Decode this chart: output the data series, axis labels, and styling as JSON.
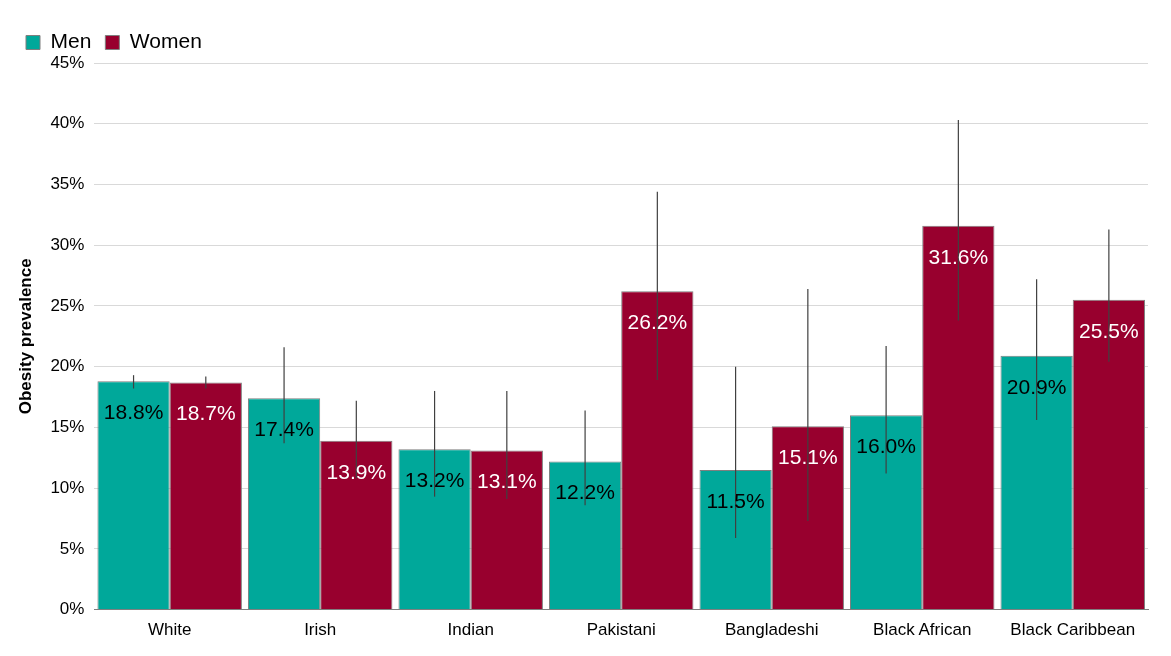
{
  "chart_data": {
    "type": "bar",
    "ylabel": "Obesity prevalence",
    "categories": [
      "White",
      "Irish",
      "Indian",
      "Pakistani",
      "Bangladeshi",
      "Black African",
      "Black Caribbean"
    ],
    "series": [
      {
        "name": "Men",
        "color": "#00a89a",
        "values": [
          18.8,
          17.4,
          13.2,
          12.2,
          11.5,
          16.0,
          20.9
        ],
        "value_labels": [
          "18.8%",
          "17.4%",
          "13.2%",
          "12.2%",
          "11.5%",
          "16.0%",
          "20.9%"
        ],
        "errors": [
          [
            18.2,
            19.3
          ],
          [
            13.7,
            21.6
          ],
          [
            9.3,
            18.0
          ],
          [
            8.6,
            16.4
          ],
          [
            5.9,
            20.0
          ],
          [
            11.2,
            21.7
          ],
          [
            15.6,
            27.2
          ]
        ]
      },
      {
        "name": "Women",
        "color": "#98002e",
        "values": [
          18.7,
          13.9,
          13.1,
          26.2,
          15.1,
          31.6,
          25.5
        ],
        "value_labels": [
          "18.7%",
          "13.9%",
          "13.1%",
          "26.2%",
          "15.1%",
          "31.6%",
          "25.5%"
        ],
        "errors": [
          [
            18.2,
            19.2
          ],
          [
            10.8,
            17.2
          ],
          [
            9.1,
            18.0
          ],
          [
            18.9,
            34.4
          ],
          [
            7.3,
            26.4
          ],
          [
            23.8,
            40.3
          ],
          [
            20.4,
            31.3
          ]
        ]
      }
    ],
    "ylim": [
      0,
      45
    ],
    "yticks": [
      {
        "value": 0,
        "label": "0%"
      },
      {
        "value": 5,
        "label": "5%"
      },
      {
        "value": 10,
        "label": "10%"
      },
      {
        "value": 15,
        "label": "15%"
      },
      {
        "value": 20,
        "label": "20%"
      },
      {
        "value": 25,
        "label": "25%"
      },
      {
        "value": 30,
        "label": "30%"
      },
      {
        "value": 35,
        "label": "35%"
      },
      {
        "value": 40,
        "label": "40%"
      },
      {
        "value": 45,
        "label": "45%"
      }
    ],
    "grid": "y",
    "legend": "top left"
  }
}
